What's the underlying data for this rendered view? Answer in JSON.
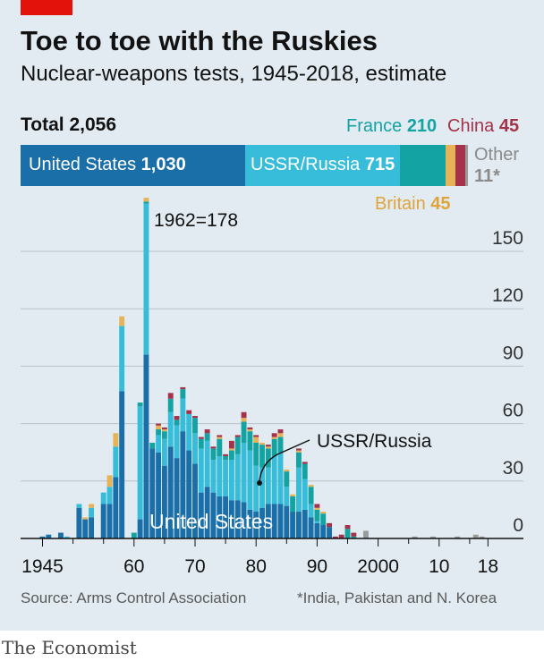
{
  "title": "Toe to toe with the Ruskies",
  "subtitle": "Nuclear-weapons tests, 1945-2018, estimate",
  "total": {
    "label": "Total",
    "value": "2,056"
  },
  "summary_bar": [
    {
      "name": "United States",
      "value": 1030,
      "value_label": "1,030",
      "color": "#1a6fa9"
    },
    {
      "name": "USSR/Russia",
      "value": 715,
      "value_label": "715",
      "color": "#37bcd9"
    },
    {
      "name": "France",
      "value": 210,
      "value_label": "210",
      "color": "#14a3a3"
    },
    {
      "name": "Britain",
      "value": 45,
      "value_label": "45",
      "color": "#e6b356"
    },
    {
      "name": "China",
      "value": 45,
      "value_label": "45",
      "color": "#a3324a"
    },
    {
      "name": "Other",
      "value": 11,
      "value_label": "11*",
      "color": "#9a9a9a"
    }
  ],
  "chart_data": {
    "type": "bar",
    "stacked": true,
    "ylim": [
      0,
      180
    ],
    "yticks": [
      0,
      30,
      60,
      90,
      120,
      150
    ],
    "xlim": [
      1943,
      2020
    ],
    "xticks": [
      {
        "year": 1945,
        "label": "1945"
      },
      {
        "year": 1960,
        "label": "60"
      },
      {
        "year": 1970,
        "label": "70"
      },
      {
        "year": 1980,
        "label": "80"
      },
      {
        "year": 1990,
        "label": "90"
      },
      {
        "year": 2000,
        "label": "2000"
      },
      {
        "year": 2010,
        "label": "10"
      },
      {
        "year": 2018,
        "label": "18"
      }
    ],
    "annotations": [
      {
        "text": "1962=",
        "value": "178"
      },
      {
        "text": "USSR/Russia"
      },
      {
        "text": "United States"
      }
    ],
    "series_order": [
      "US",
      "USSR",
      "France",
      "Britain",
      "China",
      "Other"
    ],
    "colors": {
      "US": "#1a6fa9",
      "USSR": "#37bcd9",
      "France": "#14a3a3",
      "Britain": "#e6b356",
      "China": "#a3324a",
      "Other": "#9a9a9a"
    },
    "data": [
      {
        "year": 1945,
        "US": 1
      },
      {
        "year": 1946,
        "US": 2
      },
      {
        "year": 1948,
        "US": 3
      },
      {
        "year": 1949,
        "USSR": 1
      },
      {
        "year": 1951,
        "US": 16,
        "USSR": 2
      },
      {
        "year": 1952,
        "US": 10,
        "Britain": 1
      },
      {
        "year": 1953,
        "US": 11,
        "USSR": 5,
        "Britain": 2
      },
      {
        "year": 1955,
        "US": 18,
        "USSR": 6
      },
      {
        "year": 1956,
        "US": 18,
        "USSR": 9,
        "Britain": 6
      },
      {
        "year": 1957,
        "US": 32,
        "USSR": 16,
        "Britain": 7
      },
      {
        "year": 1958,
        "US": 77,
        "USSR": 34,
        "Britain": 5
      },
      {
        "year": 1960,
        "France": 3
      },
      {
        "year": 1961,
        "US": 10,
        "USSR": 59,
        "France": 2
      },
      {
        "year": 1962,
        "US": 96,
        "USSR": 79,
        "France": 1,
        "Britain": 2
      },
      {
        "year": 1963,
        "US": 47,
        "USSR": 0,
        "France": 3
      },
      {
        "year": 1964,
        "US": 45,
        "USSR": 9,
        "France": 3,
        "Britain": 2,
        "China": 1
      },
      {
        "year": 1965,
        "US": 38,
        "USSR": 14,
        "France": 4,
        "Britain": 1,
        "China": 1
      },
      {
        "year": 1966,
        "US": 48,
        "USSR": 18,
        "France": 7,
        "China": 3
      },
      {
        "year": 1967,
        "US": 42,
        "USSR": 17,
        "France": 3,
        "China": 2
      },
      {
        "year": 1968,
        "US": 56,
        "USSR": 17,
        "France": 5,
        "China": 1
      },
      {
        "year": 1969,
        "US": 46,
        "USSR": 19,
        "China": 2
      },
      {
        "year": 1970,
        "US": 39,
        "USSR": 16,
        "France": 8,
        "China": 1
      },
      {
        "year": 1971,
        "US": 24,
        "USSR": 23,
        "France": 5,
        "China": 1
      },
      {
        "year": 1972,
        "US": 27,
        "USSR": 24,
        "France": 4,
        "China": 2
      },
      {
        "year": 1973,
        "US": 24,
        "USSR": 17,
        "France": 6,
        "China": 1
      },
      {
        "year": 1974,
        "US": 22,
        "USSR": 21,
        "France": 9,
        "Britain": 1,
        "China": 1
      },
      {
        "year": 1975,
        "US": 22,
        "USSR": 19,
        "France": 2,
        "China": 1
      },
      {
        "year": 1976,
        "US": 20,
        "USSR": 21,
        "France": 5,
        "Britain": 1,
        "China": 4
      },
      {
        "year": 1977,
        "US": 20,
        "USSR": 24,
        "France": 9,
        "China": 1
      },
      {
        "year": 1978,
        "US": 19,
        "USSR": 31,
        "France": 11,
        "Britain": 2,
        "China": 3
      },
      {
        "year": 1979,
        "US": 15,
        "USSR": 31,
        "France": 10,
        "Britain": 1,
        "China": 1
      },
      {
        "year": 1980,
        "US": 14,
        "USSR": 24,
        "France": 12,
        "Britain": 3,
        "China": 1
      },
      {
        "year": 1981,
        "US": 16,
        "USSR": 21,
        "France": 12,
        "Britain": 1
      },
      {
        "year": 1982,
        "US": 18,
        "USSR": 19,
        "France": 10,
        "Britain": 1,
        "China": 1
      },
      {
        "year": 1983,
        "US": 18,
        "USSR": 25,
        "France": 9,
        "Britain": 1,
        "China": 2
      },
      {
        "year": 1984,
        "US": 18,
        "USSR": 27,
        "France": 8,
        "Britain": 2,
        "China": 2
      },
      {
        "year": 1985,
        "US": 17,
        "USSR": 10,
        "France": 8,
        "Britain": 1
      },
      {
        "year": 1986,
        "US": 14,
        "France": 8,
        "Britain": 1
      },
      {
        "year": 1987,
        "US": 14,
        "USSR": 23,
        "France": 8,
        "Britain": 1,
        "China": 1
      },
      {
        "year": 1988,
        "US": 15,
        "USSR": 16,
        "France": 8,
        "China": 1
      },
      {
        "year": 1989,
        "US": 11,
        "USSR": 7,
        "France": 9,
        "Britain": 1
      },
      {
        "year": 1990,
        "US": 8,
        "USSR": 1,
        "France": 6,
        "Britain": 1,
        "China": 2
      },
      {
        "year": 1991,
        "US": 7,
        "France": 6,
        "Britain": 1
      },
      {
        "year": 1992,
        "US": 6,
        "China": 2
      },
      {
        "year": 1993,
        "China": 1
      },
      {
        "year": 1994,
        "China": 2
      },
      {
        "year": 1995,
        "France": 5,
        "China": 2
      },
      {
        "year": 1996,
        "France": 1,
        "China": 2
      },
      {
        "year": 1998,
        "Other": 4
      },
      {
        "year": 2006,
        "Other": 1
      },
      {
        "year": 2009,
        "Other": 1
      },
      {
        "year": 2013,
        "Other": 1
      },
      {
        "year": 2016,
        "Other": 2
      },
      {
        "year": 2017,
        "Other": 1
      }
    ]
  },
  "footer": {
    "source": "Source: Arms Control Association",
    "note": "*India, Pakistan and N. Korea"
  },
  "brand": "The Economist"
}
